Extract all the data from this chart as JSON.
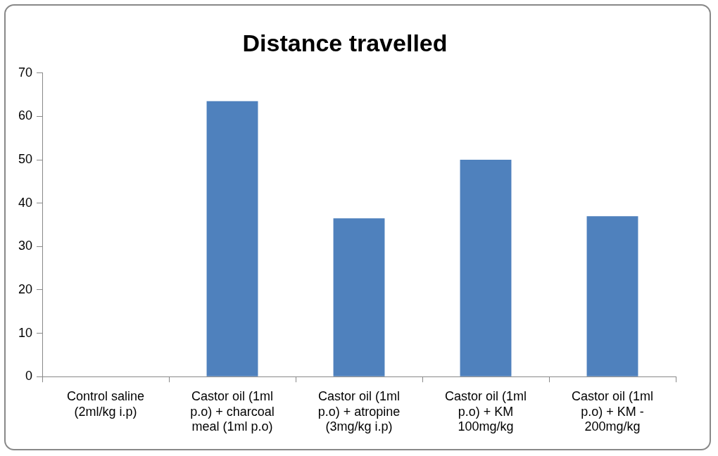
{
  "chart_data": {
    "type": "bar",
    "title": "Distance travelled",
    "categories": [
      "Control saline (2ml/kg i.p)",
      "Castor oil (1ml p.o) + charcoal meal (1ml p.o)",
      "Castor oil (1ml p.o) + atropine (3mg/kg i.p)",
      "Castor oil (1ml p.o) + KM 100mg/kg",
      "Castor oil (1ml p.o) + KM - 200mg/kg"
    ],
    "values": [
      0,
      63.5,
      36.5,
      50,
      37
    ],
    "color": "#4f81bd",
    "ylim": [
      0,
      70
    ],
    "yticks": [
      0,
      10,
      20,
      30,
      40,
      50,
      60,
      70
    ],
    "grid": false,
    "legend": false
  }
}
